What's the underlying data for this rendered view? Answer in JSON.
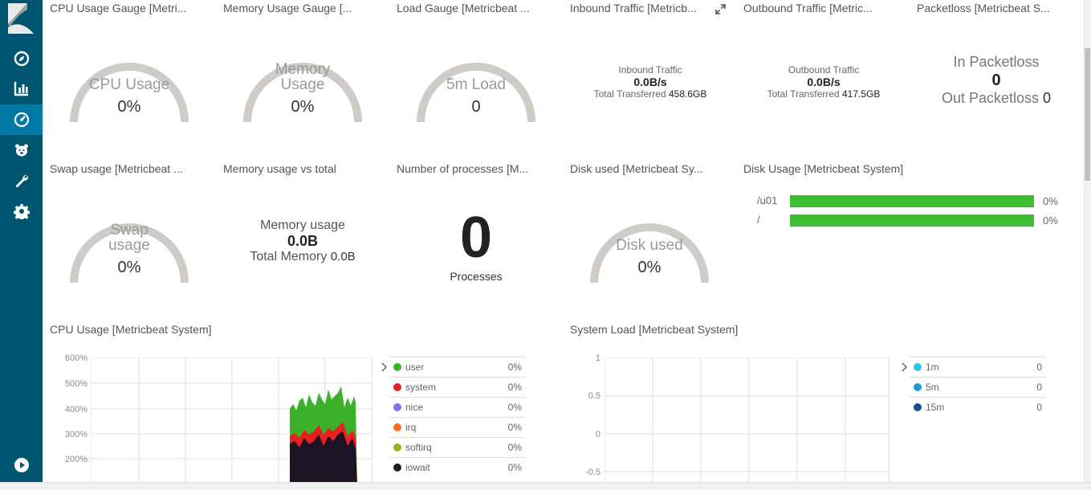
{
  "nav": {
    "items": [
      {
        "name": "discover",
        "icon": "compass-icon"
      },
      {
        "name": "visualize",
        "icon": "bar-chart-icon"
      },
      {
        "name": "dashboard",
        "icon": "gauge-icon"
      },
      {
        "name": "timelion",
        "icon": "bear-icon"
      },
      {
        "name": "devtools",
        "icon": "wrench-icon"
      },
      {
        "name": "management",
        "icon": "gear-icon"
      }
    ],
    "collapse_icon": "play-circle-icon"
  },
  "panels": {
    "cpu_gauge": {
      "title": "CPU Usage Gauge [Metri...",
      "label": "CPU Usage",
      "value": "0%"
    },
    "mem_gauge": {
      "title": "Memory Usage Gauge [...",
      "label1": "Memory",
      "label2": "Usage",
      "value": "0%"
    },
    "load_gauge": {
      "title": "Load Gauge [Metricbeat ...",
      "label": "5m Load",
      "value": "0"
    },
    "inbound": {
      "title": "Inbound Traffic [Metricb...",
      "label": "Inbound Traffic",
      "value": "0.0B/s",
      "total_label": "Total Transferred",
      "total_value": "458.6GB"
    },
    "outbound": {
      "title": "Outbound Traffic [Metric...",
      "label": "Outbound Traffic",
      "value": "0.0B/s",
      "total_label": "Total Transferred",
      "total_value": "417.5GB"
    },
    "packetloss": {
      "title": "Packetloss [Metricbeat S...",
      "in_label": "In Packetloss",
      "in_value": "0",
      "out_label": "Out Packetloss",
      "out_value": "0"
    },
    "swap_gauge": {
      "title": "Swap usage [Metricbeat ...",
      "label1": "Swap",
      "label2": "usage",
      "value": "0%"
    },
    "mem_vs_total": {
      "title": "Memory usage vs total",
      "label": "Memory usage",
      "value": "0.0B",
      "total_label": "Total Memory",
      "total_value": "0.0B"
    },
    "processes": {
      "title": "Number of processes [M...",
      "value": "0",
      "label": "Processes"
    },
    "disk_gauge": {
      "title": "Disk used [Metricbeat Sy...",
      "label": "Disk used",
      "value": "0%"
    },
    "disk_usage": {
      "title": "Disk Usage [Metricbeat System]",
      "rows": [
        {
          "mount": "/u01",
          "value": "0%",
          "fraction": 1.0
        },
        {
          "mount": "/",
          "value": "0%",
          "fraction": 1.0
        }
      ]
    },
    "cpu_usage": {
      "title": "CPU Usage [Metricbeat System]",
      "legend": [
        {
          "name": "user",
          "value": "0%",
          "color": "#3cb029"
        },
        {
          "name": "system",
          "value": "0%",
          "color": "#e8201f"
        },
        {
          "name": "nice",
          "value": "0%",
          "color": "#8b6de8"
        },
        {
          "name": "irq",
          "value": "0%",
          "color": "#f07020"
        },
        {
          "name": "softirq",
          "value": "0%",
          "color": "#a0b020"
        },
        {
          "name": "iowait",
          "value": "0%",
          "color": "#1c1c28"
        }
      ]
    },
    "system_load": {
      "title": "System Load [Metricbeat System]",
      "legend": [
        {
          "name": "1m",
          "value": "0",
          "color": "#2ec7e8"
        },
        {
          "name": "5m",
          "value": "0",
          "color": "#1e9ad8"
        },
        {
          "name": "15m",
          "value": "0",
          "color": "#1b4f8e"
        }
      ]
    }
  },
  "chart_data": [
    {
      "type": "area",
      "y_ticks": [
        "600%",
        "500%",
        "400%",
        "300%",
        "200%"
      ],
      "ylim": [
        0,
        600
      ]
    },
    {
      "type": "line",
      "y_ticks": [
        "1",
        "0.5",
        "0",
        "-0.5"
      ],
      "ylim": [
        -0.5,
        1
      ]
    }
  ]
}
